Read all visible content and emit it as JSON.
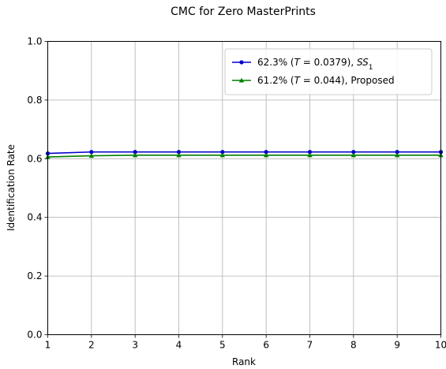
{
  "chart_data": {
    "type": "line",
    "title": "CMC for Zero MasterPrints",
    "xlabel": "Rank",
    "ylabel": "Identification Rate",
    "xlim": [
      1,
      10
    ],
    "ylim": [
      0.0,
      1.0
    ],
    "grid": true,
    "legend_position": "top-right",
    "x": [
      1,
      2,
      3,
      4,
      5,
      6,
      7,
      8,
      9,
      10
    ],
    "x_ticks": [
      "1",
      "2",
      "3",
      "4",
      "5",
      "6",
      "7",
      "8",
      "9",
      "10"
    ],
    "y_ticks": [
      "0.0",
      "0.2",
      "0.4",
      "0.6",
      "0.8",
      "1.0"
    ],
    "series": [
      {
        "legend": {
          "pre": "62.3% (",
          "t": "T",
          "mid": " = 0.0379), ",
          "ss": "SS",
          "sub": "1",
          "post": ""
        },
        "color": "#0000cc",
        "marker": "circle",
        "values": [
          0.618,
          0.623,
          0.623,
          0.623,
          0.623,
          0.623,
          0.623,
          0.623,
          0.623,
          0.623
        ]
      },
      {
        "legend": {
          "pre": "61.2% (",
          "t": "T",
          "mid": " = 0.044), ",
          "ss": "",
          "sub": "",
          "post": "Proposed"
        },
        "color": "#007f00",
        "marker": "triangle",
        "values": [
          0.606,
          0.61,
          0.612,
          0.612,
          0.612,
          0.612,
          0.612,
          0.612,
          0.612,
          0.612
        ]
      }
    ]
  }
}
